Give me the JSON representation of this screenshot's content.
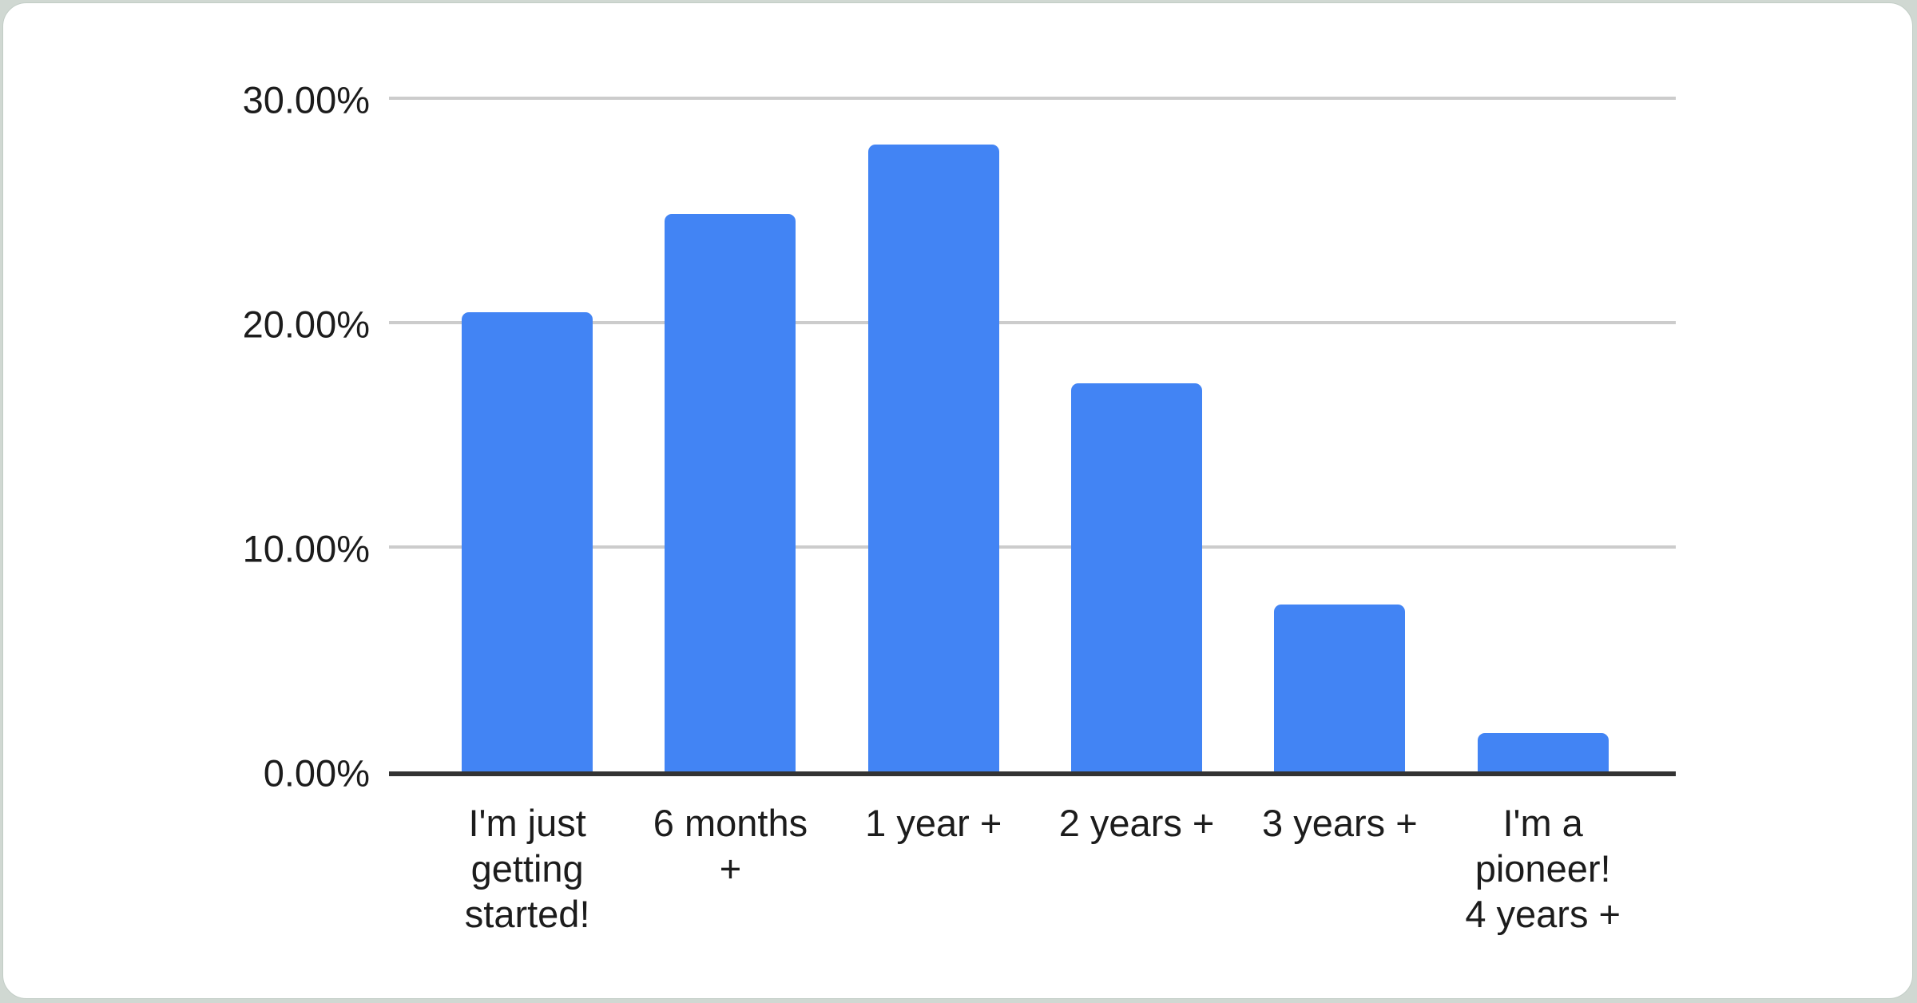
{
  "page": {
    "background_color": "#d0d8d2",
    "card_background_color": "#ffffff"
  },
  "chart_data": {
    "type": "bar",
    "title": "",
    "xlabel": "",
    "ylabel": "",
    "categories": [
      "I'm just getting started!",
      "6 months +",
      "1 year +",
      "2 years +",
      "3 years +",
      "I'm a pioneer! 4 years +"
    ],
    "category_display": [
      "I'm just\ngetting\nstarted!",
      "6 months\n+",
      "1 year +",
      "2 years +",
      "3 years +",
      "I'm a\npioneer!\n4 years +"
    ],
    "values": [
      20.45,
      24.85,
      27.95,
      17.3,
      7.45,
      1.7
    ],
    "value_unit": "%",
    "ylim": [
      0,
      30
    ],
    "y_ticks": [
      {
        "label": "0.00%",
        "value": 0
      },
      {
        "label": "10.00%",
        "value": 10
      },
      {
        "label": "20.00%",
        "value": 20
      },
      {
        "label": "30.00%",
        "value": 30
      }
    ],
    "grid": true,
    "legend_position": "none",
    "bar_color": "#4284f4",
    "gridline_color": "#cccccc",
    "axis_color": "#333333",
    "text_color": "#1c1c1c"
  }
}
